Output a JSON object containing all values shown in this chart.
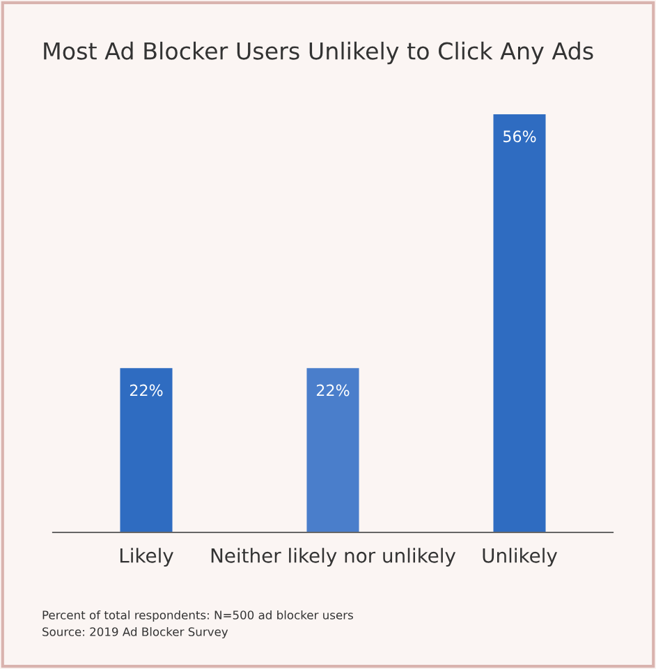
{
  "chart_data": {
    "type": "bar",
    "title": "Most Ad Blocker Users Unlikely to Click Any Ads",
    "categories": [
      "Likely",
      "Neither likely nor unlikely",
      "Unlikely"
    ],
    "values": [
      22,
      22,
      56
    ],
    "colors": [
      "#2f6cc1",
      "#4a7ecb",
      "#2f6cc1"
    ],
    "value_labels": [
      "22%",
      "22%",
      "56%"
    ],
    "tick_labels": "x",
    "grid": false,
    "legend": false,
    "annotations": [
      "Percent of total respondents: N=500 ad blocker users",
      "Source: 2019 Ad Blocker Survey"
    ]
  }
}
